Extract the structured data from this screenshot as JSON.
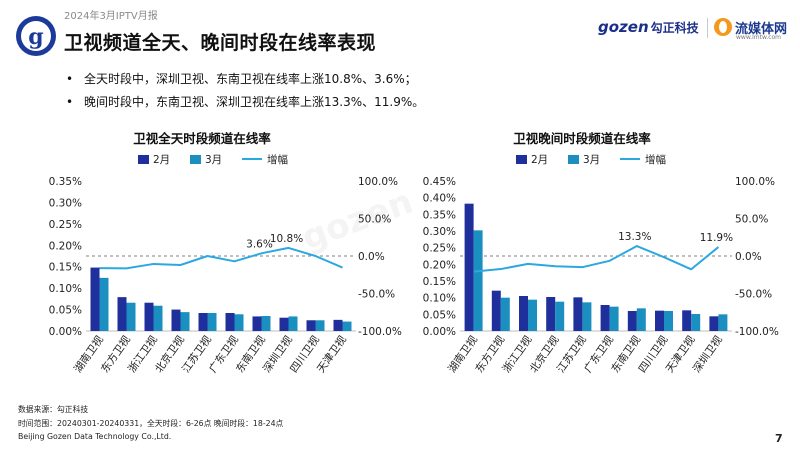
{
  "header": {
    "report_label": "2024年3月IPTV月报",
    "title": "卫视频道全天、晚间时段在线率表现",
    "brand_gozen": "gozen",
    "brand_gozen_cn": "勾正科技",
    "brand_lmtw": "流媒体网",
    "brand_lmtw_url": "www.lmtw.com"
  },
  "bullets": [
    "全天时段中，深圳卫视、东南卫视在线率上涨10.8%、3.6%；",
    "晚间时段中，东南卫视、深圳卫视在线率上涨13.3%、11.9%。"
  ],
  "legend": {
    "feb": "2月",
    "mar": "3月",
    "growth": "增幅"
  },
  "colors": {
    "feb": "#1f2f9c",
    "mar": "#1b8fbf",
    "growth": "#2ba8df"
  },
  "chart_data": [
    {
      "type": "bar",
      "title": "卫视全天时段频道在线率",
      "categories": [
        "湖南卫视",
        "东方卫视",
        "浙江卫视",
        "北京卫视",
        "江苏卫视",
        "广东卫视",
        "东南卫视",
        "深圳卫视",
        "四川卫视",
        "天津卫视"
      ],
      "series": [
        {
          "name": "2月",
          "values": [
            0.148,
            0.079,
            0.066,
            0.05,
            0.042,
            0.042,
            0.034,
            0.031,
            0.025,
            0.026
          ]
        },
        {
          "name": "3月",
          "values": [
            0.124,
            0.066,
            0.059,
            0.044,
            0.042,
            0.039,
            0.035,
            0.034,
            0.025,
            0.022
          ]
        },
        {
          "name": "增幅",
          "axis": "right",
          "values": [
            -16.2,
            -16.5,
            -10.6,
            -12.0,
            0.0,
            -7.1,
            3.6,
            10.8,
            0.0,
            -15.4
          ]
        }
      ],
      "annotations": [
        "3.6%",
        "10.8%"
      ],
      "annotation_index": [
        6,
        7
      ],
      "ylim": [
        0,
        0.0035
      ],
      "yticks_left": [
        "0.00%",
        "0.05%",
        "0.10%",
        "0.15%",
        "0.20%",
        "0.25%",
        "0.30%",
        "0.35%"
      ],
      "y2lim": [
        -100,
        100
      ],
      "yticks_right": [
        "-100.0%",
        "-50.0%",
        "0.0%",
        "50.0%",
        "100.0%"
      ]
    },
    {
      "type": "bar",
      "title": "卫视晚间时段频道在线率",
      "categories": [
        "湖南卫视",
        "东方卫视",
        "浙江卫视",
        "北京卫视",
        "江苏卫视",
        "广东卫视",
        "东南卫视",
        "四川卫视",
        "天津卫视",
        "深圳卫视"
      ],
      "series": [
        {
          "name": "2月",
          "values": [
            0.382,
            0.121,
            0.105,
            0.102,
            0.101,
            0.078,
            0.06,
            0.061,
            0.062,
            0.044
          ]
        },
        {
          "name": "3月",
          "values": [
            0.302,
            0.1,
            0.094,
            0.088,
            0.086,
            0.073,
            0.068,
            0.06,
            0.051,
            0.05
          ]
        },
        {
          "name": "增幅",
          "axis": "right",
          "values": [
            -20.9,
            -17.4,
            -10.5,
            -13.7,
            -14.9,
            -6.4,
            13.3,
            -1.6,
            -17.7,
            11.9
          ]
        }
      ],
      "annotations": [
        "13.3%",
        "11.9%"
      ],
      "annotation_index": [
        6,
        9
      ],
      "ylim": [
        0,
        0.0045
      ],
      "yticks_left": [
        "0.00%",
        "0.05%",
        "0.10%",
        "0.15%",
        "0.20%",
        "0.25%",
        "0.30%",
        "0.35%",
        "0.40%",
        "0.45%"
      ],
      "y2lim": [
        -100,
        100
      ],
      "yticks_right": [
        "-100.0%",
        "-50.0%",
        "0.0%",
        "50.0%",
        "100.0%"
      ]
    }
  ],
  "footer": {
    "source": "数据来源：勾正科技",
    "range": "时间范围：20240301-20240331，全天时段：6-26点 晚间时段：18-24点",
    "company": "Beijing Gozen Data Technology Co.,Ltd.",
    "page": "7"
  }
}
